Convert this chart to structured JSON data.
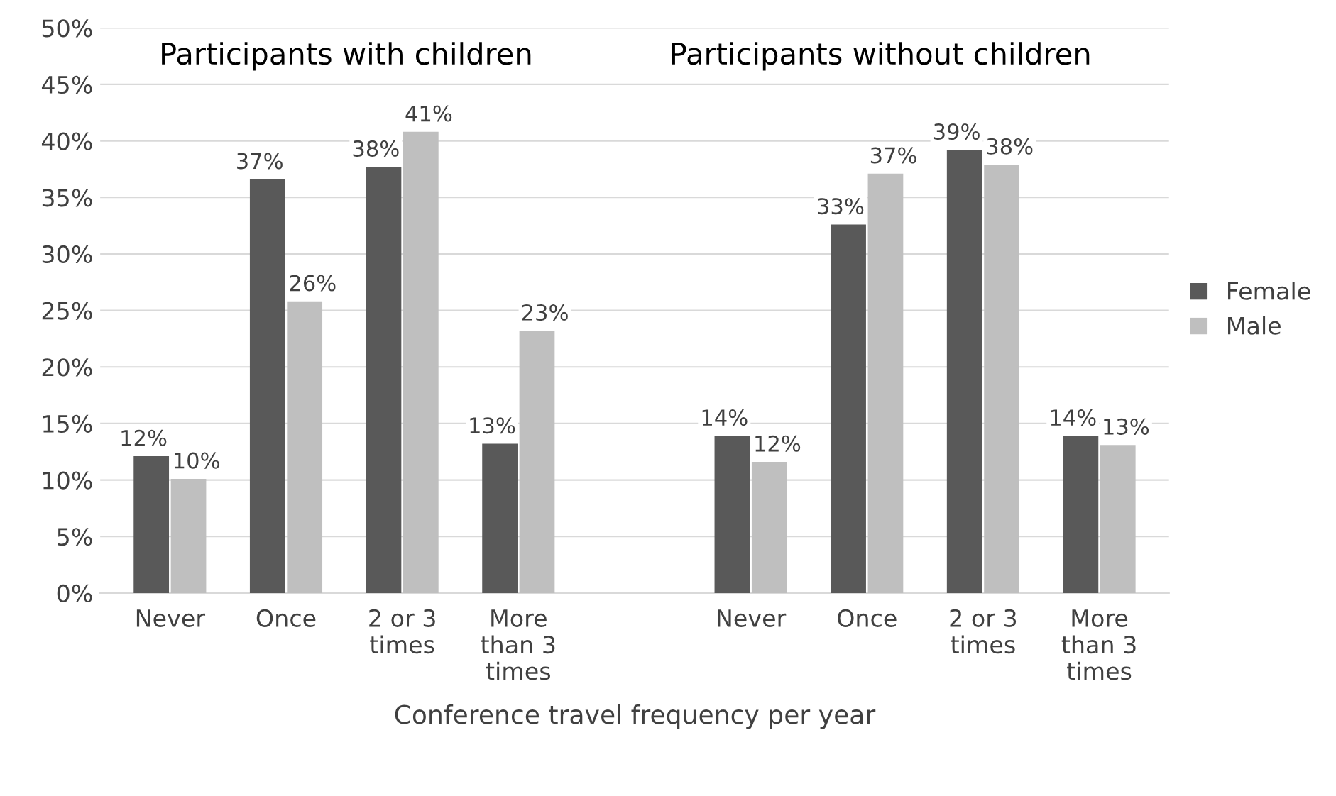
{
  "chart_data": {
    "type": "bar",
    "xlabel": "Conference travel frequency per year",
    "categories": [
      "Never",
      "Once",
      "2 or 3\ntimes",
      "More\nthan 3\ntimes",
      null,
      "Never",
      "Once",
      "2 or 3\ntimes",
      "More\nthan 3\ntimes"
    ],
    "series": [
      {
        "name": "Female",
        "color": "#595959",
        "values": [
          12.1,
          36.6,
          37.7,
          13.2,
          null,
          13.9,
          32.6,
          39.2,
          13.9
        ],
        "value_labels": [
          "12%",
          "37%",
          "38%",
          "13%",
          null,
          "14%",
          "33%",
          "39%",
          "14%"
        ]
      },
      {
        "name": "Male",
        "color": "#bfbfbf",
        "values": [
          10.1,
          25.8,
          40.8,
          23.2,
          null,
          11.6,
          37.1,
          37.9,
          13.1
        ],
        "value_labels": [
          "10%",
          "26%",
          "41%",
          "23%",
          null,
          "12%",
          "37%",
          "38%",
          "13%"
        ]
      }
    ],
    "annotations": [
      "Participants with children",
      "Participants without children"
    ],
    "ylim": [
      0,
      50
    ],
    "yticks": [
      {
        "value": 0,
        "label": "0%"
      },
      {
        "value": 5,
        "label": "5%"
      },
      {
        "value": 10,
        "label": "10%"
      },
      {
        "value": 15,
        "label": "15%"
      },
      {
        "value": 20,
        "label": "20%"
      },
      {
        "value": 25,
        "label": "25%"
      },
      {
        "value": 30,
        "label": "30%"
      },
      {
        "value": 35,
        "label": "35%"
      },
      {
        "value": 40,
        "label": "40%"
      },
      {
        "value": 45,
        "label": "45%"
      },
      {
        "value": 50,
        "label": "50%"
      }
    ],
    "grid": "y",
    "legend": "right"
  }
}
